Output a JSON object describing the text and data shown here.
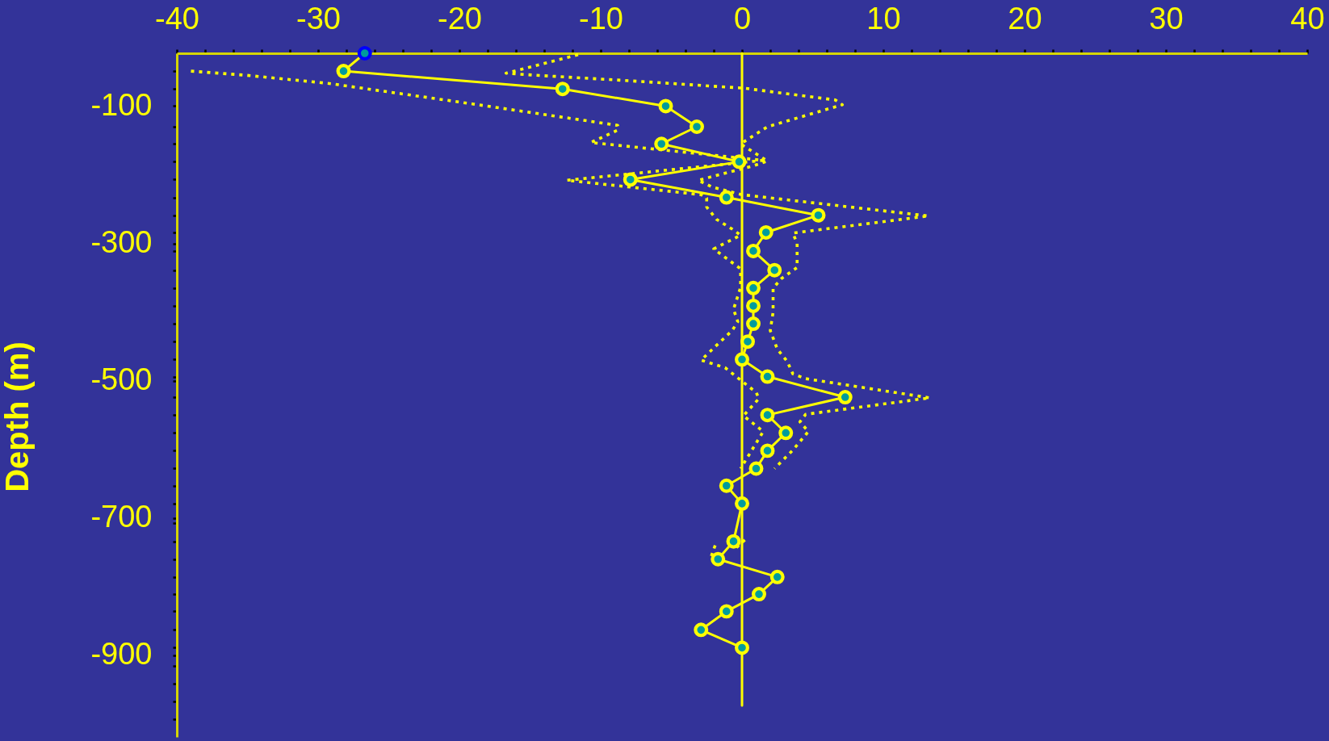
{
  "chart_data": {
    "type": "line",
    "ylabel": "Depth (m)",
    "xlim": [
      -40,
      40
    ],
    "xticks": [
      -40,
      {
        "value": -38,
        "label": null
      },
      {
        "value": -36,
        "label": null
      },
      {
        "value": -34,
        "label": null
      },
      {
        "value": -32,
        "label": null
      },
      -30,
      {
        "value": -28,
        "label": null
      },
      {
        "value": -26,
        "label": null
      },
      {
        "value": -24,
        "label": null
      },
      {
        "value": -22,
        "label": null
      },
      -20,
      {
        "value": -18,
        "label": null
      },
      {
        "value": -16,
        "label": null
      },
      {
        "value": -14,
        "label": null
      },
      {
        "value": -12,
        "label": null
      },
      -10,
      {
        "value": -8,
        "label": null
      },
      {
        "value": -6,
        "label": null
      },
      {
        "value": -4,
        "label": null
      },
      {
        "value": -2,
        "label": null
      },
      0,
      {
        "value": 2,
        "label": null
      },
      {
        "value": 4,
        "label": null
      },
      {
        "value": 6,
        "label": null
      },
      {
        "value": 8,
        "label": null
      },
      10,
      {
        "value": 12,
        "label": null
      },
      {
        "value": 14,
        "label": null
      },
      {
        "value": 16,
        "label": null
      },
      {
        "value": 18,
        "label": null
      },
      20,
      {
        "value": 22,
        "label": null
      },
      {
        "value": 24,
        "label": null
      },
      {
        "value": 26,
        "label": null
      },
      {
        "value": 28,
        "label": null
      },
      30,
      {
        "value": 32,
        "label": null
      },
      {
        "value": 34,
        "label": null
      },
      {
        "value": 36,
        "label": null
      },
      {
        "value": 38,
        "label": null
      },
      40
    ],
    "ylim": [
      -1019,
      -23
    ],
    "yticks": [
      -100,
      -300,
      -500,
      -700,
      -900,
      {
        "value": -49,
        "label": null
      },
      {
        "value": -75,
        "label": null
      },
      {
        "value": -130,
        "label": null
      },
      {
        "value": -155,
        "label": null
      },
      {
        "value": -181,
        "label": null
      },
      {
        "value": -207,
        "label": null
      },
      {
        "value": -233,
        "label": null
      },
      {
        "value": -259,
        "label": null
      },
      {
        "value": -284,
        "label": null
      },
      {
        "value": -311,
        "label": null
      },
      {
        "value": -339,
        "label": null
      },
      {
        "value": -365,
        "label": null
      },
      {
        "value": -391,
        "label": null
      },
      {
        "value": -417,
        "label": null
      },
      {
        "value": -443,
        "label": null
      },
      {
        "value": -469,
        "label": null
      },
      {
        "value": -494,
        "label": null
      },
      {
        "value": -524,
        "label": null
      },
      {
        "value": -550,
        "label": null
      },
      {
        "value": -576,
        "label": null
      },
      {
        "value": -602,
        "label": null
      },
      {
        "value": -628,
        "label": null
      },
      {
        "value": -653,
        "label": null
      },
      {
        "value": -679,
        "label": null
      },
      {
        "value": -707,
        "label": null
      },
      {
        "value": -734,
        "label": null
      },
      {
        "value": -760,
        "label": null
      },
      {
        "value": -786,
        "label": null
      },
      {
        "value": -811,
        "label": null
      },
      {
        "value": -836,
        "label": null
      },
      {
        "value": -863,
        "label": null
      },
      {
        "value": -889,
        "label": null
      },
      {
        "value": -915,
        "label": null
      },
      {
        "value": -941,
        "label": null
      },
      {
        "value": -967,
        "label": null
      },
      {
        "value": -993,
        "label": null
      }
    ],
    "grid": false,
    "marker": "circle",
    "line_style": "solid",
    "series": [
      {
        "color": "#ffff00",
        "marker": "none",
        "line_style": "dotted",
        "x": [
          -39.0,
          -35.1,
          -29.2,
          -19.0,
          -11.1,
          -8.8,
          -8.8,
          -10.7,
          1.5,
          -12.4,
          -2.9,
          -2.5,
          -2.5,
          -1.8,
          -0.7,
          -0.1,
          -2.0,
          -0.1,
          -0.1,
          -0.6,
          -0.3,
          -0.7,
          -2.9,
          -1.2,
          1.0,
          1.2,
          0.1,
          1.5,
          -0.1
        ],
        "values": [
          -49,
          -55,
          -67,
          -97,
          -121,
          -128,
          -135,
          -153,
          -179,
          -208,
          -229,
          -234,
          -247,
          -265,
          -279,
          -288,
          -308,
          -337,
          -364,
          -396,
          -414,
          -427,
          -470,
          -481,
          -517,
          -526,
          -551,
          -574,
          -628
        ]
      },
      {
        "color": "#ffff00",
        "marker": "none",
        "line_style": "dotted",
        "x": [
          -11.6,
          -16.7,
          -15.4,
          -7.2,
          0.2,
          6.6,
          7.1,
          1.8,
          -0.1,
          1.8,
          0.8,
          -3.1,
          -2.1,
          0.0,
          13.2,
          3.6,
          3.9,
          3.9,
          2.8,
          2.2,
          2.2,
          2.0,
          2.5,
          3.2,
          3.6,
          4.5,
          13.3,
          4.5,
          4.1,
          4.7,
          3.6,
          2.3
        ],
        "values": [
          -25,
          -52,
          -54,
          -64,
          -74,
          -91,
          -98,
          -130,
          -155,
          -180,
          -187,
          -208,
          -218,
          -229,
          -260,
          -285,
          -300,
          -335,
          -351,
          -365,
          -400,
          -427,
          -454,
          -472,
          -490,
          -497,
          -525,
          -549,
          -560,
          -574,
          -601,
          -628
        ]
      },
      {
        "color": "#ffff00",
        "marker": "none",
        "line_style": "dotted",
        "x": [
          0.2,
          -0.6
        ],
        "values": [
          -732,
          -747
        ]
      },
      {
        "color": "#ffff00",
        "marker": "none",
        "line_style": "dotted",
        "x": [
          -1.9,
          -2.2
        ],
        "values": [
          -740,
          -757
        ]
      },
      {
        "color": "#ffff00",
        "marker": "none",
        "x": [
          0,
          0
        ],
        "values": [
          -23,
          -973
        ]
      },
      {
        "color": "#ffff00",
        "colors": [
          "#0000ff",
          "#ffff00",
          "#ffff00",
          "#ffff00",
          "#ffff00",
          "#ffff00",
          "#ffff00",
          "#ffff00",
          "#ffff00",
          "#ffff00",
          "#ffff00",
          "#ffff00",
          "#ffff00",
          "#ffff00",
          "#ffff00",
          "#ffff00",
          "#ffff00",
          "#ffff00",
          "#ffff00",
          "#ffff00",
          "#ffff00",
          "#ffff00",
          "#ffff00",
          "#ffff00",
          "#ffff00",
          "#ffff00",
          "#ffff00",
          "#ffff00",
          "#ffff00",
          "#ffff00",
          "#ffff00",
          "#ffff00",
          "#ffff00"
        ],
        "x": [
          -26.7,
          -28.2,
          -12.7,
          -5.4,
          -3.2,
          -5.7,
          -0.2,
          -7.9,
          -1.1,
          5.4,
          1.7,
          0.8,
          2.3,
          0.8,
          0.8,
          0.8,
          0.4,
          0.0,
          1.8,
          7.3,
          1.8,
          3.1,
          1.8,
          1.0,
          -1.1,
          0.0,
          -0.6,
          -1.7,
          2.5,
          1.2,
          -1.1,
          -2.9,
          0.0
        ],
        "values": [
          -23,
          -49,
          -75,
          -100,
          -130,
          -155,
          -181,
          -207,
          -233,
          -259,
          -284,
          -311,
          -339,
          -365,
          -391,
          -417,
          -443,
          -469,
          -494,
          -524,
          -550,
          -576,
          -602,
          -628,
          -653,
          -679,
          -734,
          -760,
          -786,
          -811,
          -836,
          -863,
          -889
        ]
      }
    ]
  }
}
